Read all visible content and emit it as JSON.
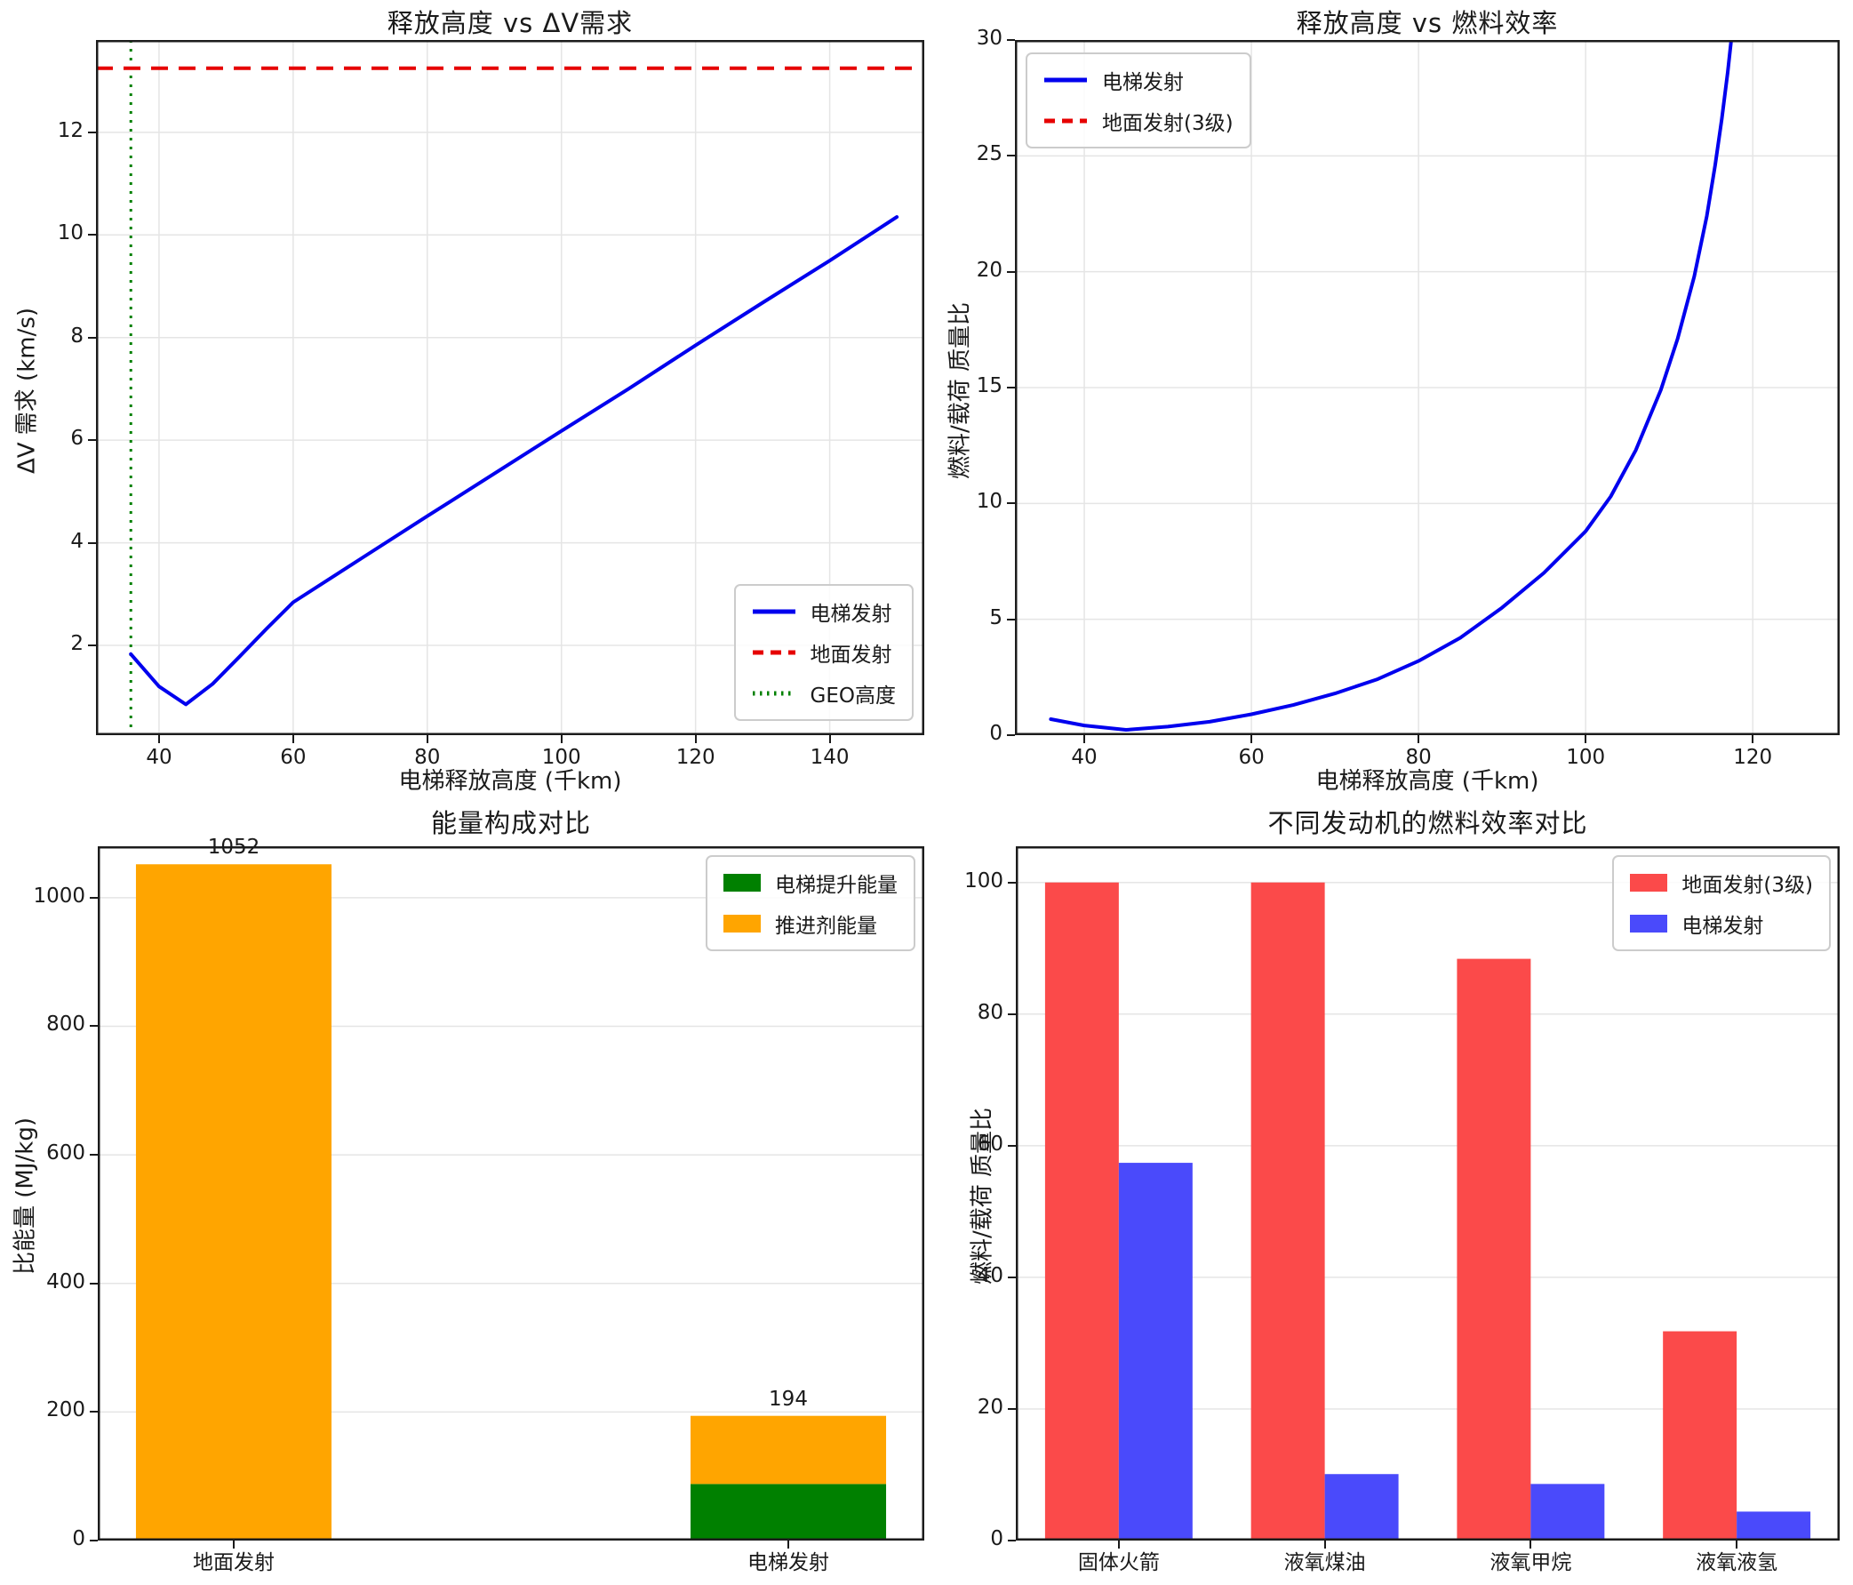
{
  "figure": {
    "background": "#ffffff",
    "spine_color": "#1c1c1c",
    "grid_color": "#e5e5e5",
    "text_color": "#1a1a1a"
  },
  "chart_data": [
    {
      "id": "release-altitude-vs-deltav",
      "type": "line",
      "title": "释放高度 vs ΔV需求",
      "xlabel": "电梯释放高度 (千km)",
      "ylabel": "ΔV 需求 (km/s)",
      "xlim": [
        30.6,
        154.1
      ],
      "ylim": [
        0.25,
        13.8
      ],
      "xticks": [
        40,
        60,
        80,
        100,
        120,
        140
      ],
      "yticks": [
        2,
        4,
        6,
        8,
        10,
        12
      ],
      "grid": "both",
      "series": [
        {
          "name": "电梯发射",
          "color": "#0000ee",
          "dash": "solid",
          "width": 4,
          "points": [
            [
              35.8,
              1.83
            ],
            [
              40,
              1.2
            ],
            [
              44,
              0.85
            ],
            [
              48,
              1.25
            ],
            [
              52,
              1.78
            ],
            [
              56,
              2.32
            ],
            [
              60,
              2.84
            ],
            [
              70,
              3.68
            ],
            [
              80,
              4.52
            ],
            [
              90,
              5.35
            ],
            [
              100,
              6.18
            ],
            [
              110,
              7.0
            ],
            [
              120,
              7.85
            ],
            [
              130,
              8.68
            ],
            [
              140,
              9.5
            ],
            [
              150,
              10.35
            ]
          ]
        }
      ],
      "hlines": [
        {
          "name": "地面发射",
          "y": 13.25,
          "color": "#e60000",
          "dash": "dashed",
          "width": 4
        }
      ],
      "vlines": [
        {
          "name": "GEO高度",
          "x": 35.8,
          "color": "#008000",
          "dash": "dotted",
          "width": 3
        }
      ],
      "legend": {
        "position": "bottom-right",
        "entries": [
          {
            "label": "电梯发射",
            "swatch": "line",
            "dash": "solid",
            "color": "#0000ee"
          },
          {
            "label": "地面发射",
            "swatch": "line",
            "dash": "dashed",
            "color": "#e60000"
          },
          {
            "label": "GEO高度",
            "swatch": "line",
            "dash": "dotted",
            "color": "#008000"
          }
        ]
      }
    },
    {
      "id": "release-altitude-vs-fuel-efficiency",
      "type": "line",
      "title": "释放高度 vs 燃料效率",
      "xlabel": "电梯释放高度 (千km)",
      "ylabel": "燃料/载荷 质量比",
      "xlim": [
        31.7,
        130.4
      ],
      "ylim": [
        0,
        30
      ],
      "xticks": [
        40,
        60,
        80,
        100,
        120
      ],
      "yticks": [
        0,
        5,
        10,
        15,
        20,
        25,
        30
      ],
      "grid": "both",
      "series": [
        {
          "name": "电梯发射",
          "color": "#0000ee",
          "dash": "solid",
          "width": 4,
          "points": [
            [
              36,
              0.69
            ],
            [
              40,
              0.42
            ],
            [
              45,
              0.23
            ],
            [
              50,
              0.37
            ],
            [
              55,
              0.58
            ],
            [
              60,
              0.9
            ],
            [
              65,
              1.3
            ],
            [
              70,
              1.8
            ],
            [
              75,
              2.4
            ],
            [
              80,
              3.2
            ],
            [
              85,
              4.2
            ],
            [
              90,
              5.5
            ],
            [
              95,
              7.0
            ],
            [
              100,
              8.8
            ],
            [
              103,
              10.3
            ],
            [
              106,
              12.3
            ],
            [
              109,
              14.9
            ],
            [
              111,
              17.1
            ],
            [
              113,
              19.8
            ],
            [
              114.5,
              22.4
            ],
            [
              115.5,
              24.6
            ],
            [
              116.3,
              26.6
            ],
            [
              117,
              28.6
            ],
            [
              117.6,
              30.6
            ]
          ]
        }
      ],
      "legend": {
        "position": "top-left",
        "entries": [
          {
            "label": "电梯发射",
            "swatch": "line",
            "dash": "solid",
            "color": "#0000ee"
          },
          {
            "label": "地面发射(3级)",
            "swatch": "line",
            "dash": "dashed",
            "color": "#e60000"
          }
        ]
      }
    },
    {
      "id": "energy-composition",
      "type": "bar-stacked",
      "title": "能量构成对比",
      "ylabel": "比能量 (MJ/kg)",
      "categories": [
        "地面发射",
        "电梯发射"
      ],
      "centers": [
        0.1645,
        0.8355
      ],
      "bar_width": 0.2366,
      "ylim": [
        0,
        1080
      ],
      "yticks": [
        0,
        200,
        400,
        600,
        800,
        1000
      ],
      "grid": "y",
      "stacks": [
        {
          "name": "电梯提升能量",
          "color": "#008000",
          "values": [
            0,
            88
          ]
        },
        {
          "name": "推进剂能量",
          "color": "#ffa500",
          "values": [
            1052,
            106
          ]
        }
      ],
      "totals": [
        1052,
        194
      ],
      "legend": {
        "position": "top-right",
        "entries": [
          {
            "label": "电梯提升能量",
            "swatch": "patch",
            "color": "#008000"
          },
          {
            "label": "推进剂能量",
            "swatch": "patch",
            "color": "#ffa500"
          }
        ]
      }
    },
    {
      "id": "engine-fuel-efficiency",
      "type": "bar-grouped",
      "title": "不同发动机的燃料效率对比",
      "ylabel": "燃料/载荷 质量比",
      "categories": [
        "固体火箭",
        "液氧煤油",
        "液氧甲烷",
        "液氧液氢"
      ],
      "centers": [
        0.125,
        0.375,
        0.625,
        0.875
      ],
      "bar_width": 0.0895,
      "ylim": [
        0,
        105.5
      ],
      "yticks": [
        0,
        20,
        40,
        60,
        80,
        100
      ],
      "grid": "y",
      "series": [
        {
          "name": "地面发射(3级)",
          "color": "#fb4a4a",
          "values": [
            100,
            100,
            88.4,
            31.8
          ]
        },
        {
          "name": "电梯发射",
          "color": "#4a4afb",
          "values": [
            57.4,
            10.1,
            8.6,
            4.4
          ]
        }
      ],
      "legend": {
        "position": "top-right",
        "entries": [
          {
            "label": "地面发射(3级)",
            "swatch": "patch",
            "color": "#fb4a4a"
          },
          {
            "label": "电梯发射",
            "swatch": "patch",
            "color": "#4a4afb"
          }
        ]
      }
    }
  ]
}
